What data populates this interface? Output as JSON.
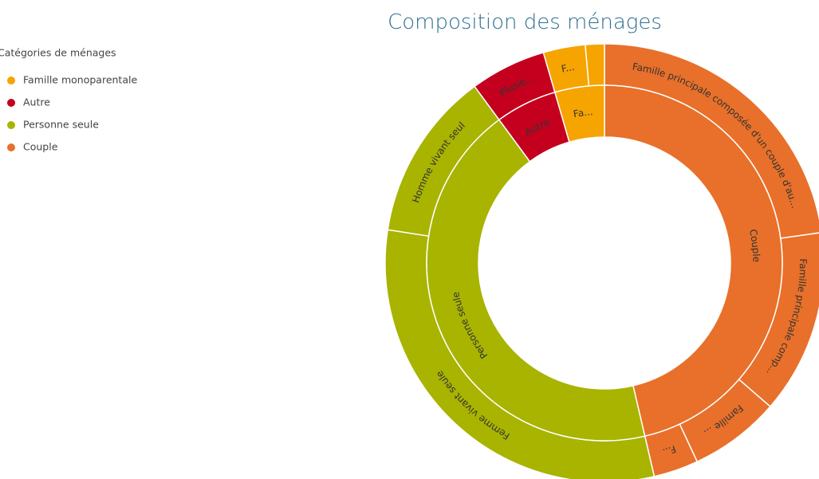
{
  "chart_data": {
    "type": "sunburst",
    "title": "Composition des ménages",
    "legend_title": "Catégories de ménages",
    "groups": [
      {
        "name": "Couple",
        "label": "Couple",
        "color": "#e8702a",
        "children": [
          {
            "label": "Famille principale composée d'un couple d'au...",
            "value": 22.8
          },
          {
            "label": "Famille principale comp...",
            "value": 13.6
          },
          {
            "label": "Famille ...",
            "value": 6.7
          },
          {
            "label": "F...",
            "value": 3.3
          }
        ]
      },
      {
        "name": "Personne seule",
        "label": "Personne seule",
        "color": "#a8b400",
        "children": [
          {
            "label": "Femme vivant seule",
            "value": 31.1
          },
          {
            "label": "Homme vivant seul",
            "value": 12.5
          }
        ]
      },
      {
        "name": "Autre",
        "label": "Autre",
        "color": "#c4001e",
        "children": [
          {
            "label": "Plusie...",
            "value": 5.6
          }
        ]
      },
      {
        "name": "Famille monoparentale",
        "label": "Fa...",
        "color": "#f5a400",
        "children": [
          {
            "label": "F...",
            "value": 3.1
          },
          {
            "label": null,
            "value": 1.4
          }
        ]
      }
    ]
  }
}
